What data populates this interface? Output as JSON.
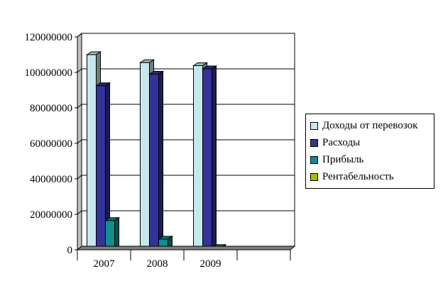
{
  "chart_data": {
    "type": "bar",
    "title": "",
    "xlabel": "",
    "ylabel": "",
    "categories": [
      "2007",
      "2008",
      "2009",
      ""
    ],
    "ylim": [
      0,
      120000000
    ],
    "yticks": [
      0,
      20000000,
      40000000,
      60000000,
      80000000,
      100000000,
      120000000
    ],
    "grid": true,
    "legend_position": "right",
    "series": [
      {
        "name": "Доходы от перевозок",
        "color": "#c6e8ec",
        "values": [
          110000000,
          105500000,
          103800000,
          null
        ]
      },
      {
        "name": "Расходы",
        "color": "#333399",
        "values": [
          92500000,
          99000000,
          102000000,
          null
        ]
      },
      {
        "name": "Прибыль",
        "color": "#0f8f8f",
        "values": [
          16500000,
          6000000,
          1300000,
          null
        ]
      },
      {
        "name": "Рентабельность",
        "color": "#9cc000",
        "values": [
          0,
          0,
          0,
          null
        ]
      }
    ]
  }
}
